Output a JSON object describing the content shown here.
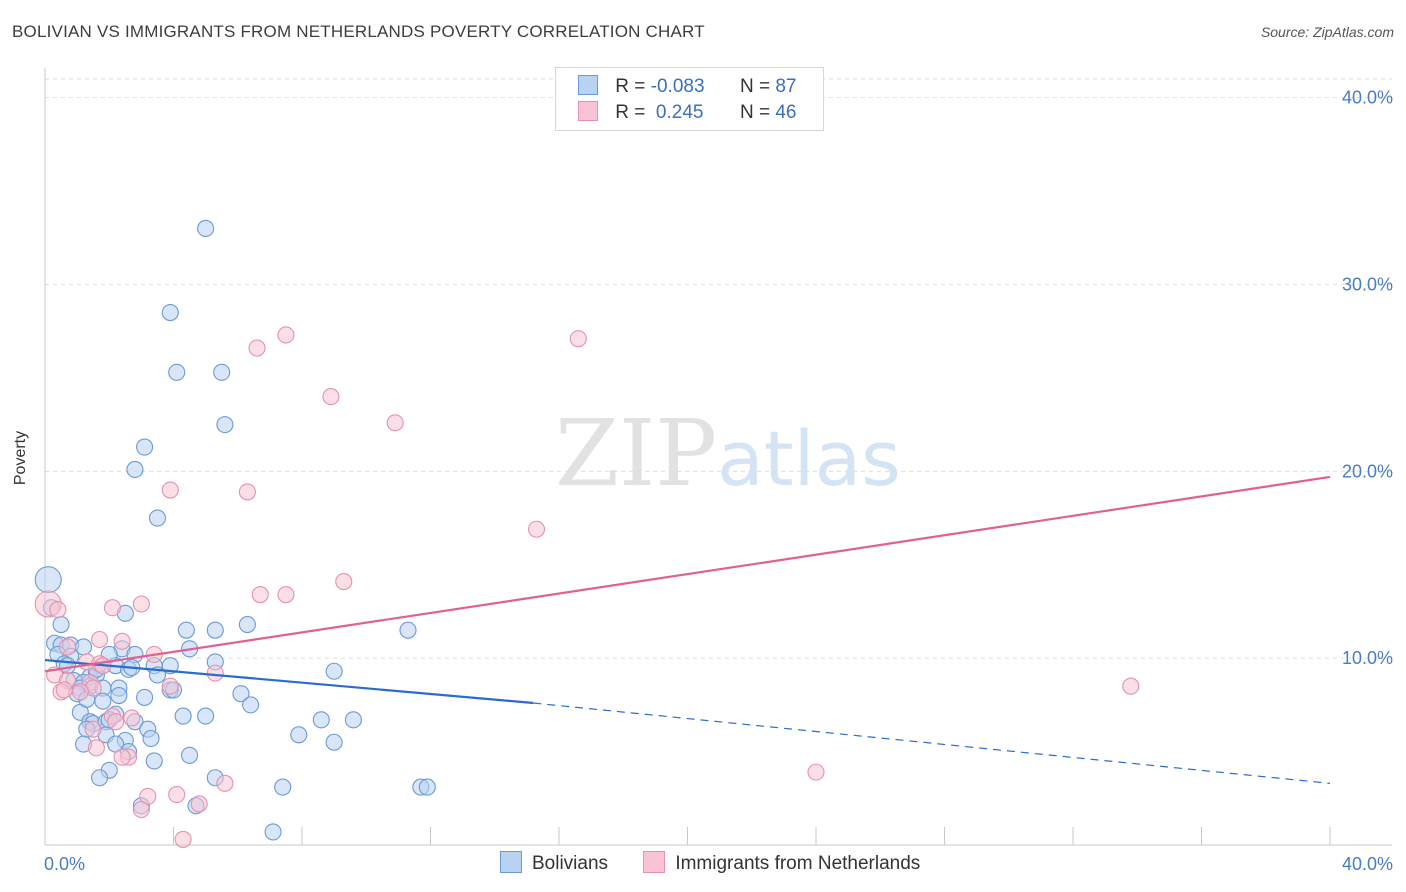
{
  "header": {
    "title": "BOLIVIAN VS IMMIGRANTS FROM NETHERLANDS POVERTY CORRELATION CHART",
    "source": "Source: ZipAtlas.com"
  },
  "watermark": {
    "part1": "ZIP",
    "part2": "atlas"
  },
  "legend": {
    "rows": [
      {
        "r_label": "R = ",
        "r_value": "-0.083",
        "n_label": "N = ",
        "n_value": "87"
      },
      {
        "r_label": "R = ",
        "r_value": " 0.245",
        "n_label": "N = ",
        "n_value": "46"
      }
    ]
  },
  "bottom_legend": {
    "items": [
      "Bolivians",
      "Immigrants from Netherlands"
    ]
  },
  "colors": {
    "blue_fill": "#b8d2f2",
    "blue_stroke": "#6a9ad8",
    "blue_line": "#2a6ccc",
    "pink_fill": "#f8c4d4",
    "pink_stroke": "#e890ac",
    "pink_line": "#e06090",
    "grid": "#dedede",
    "tick_text": "#4a7cc4"
  },
  "chart_data": {
    "type": "scatter",
    "title": "BOLIVIAN VS IMMIGRANTS FROM NETHERLANDS POVERTY CORRELATION CHART",
    "xlabel": "",
    "ylabel": "Poverty",
    "xlim": [
      0,
      40
    ],
    "ylim": [
      0,
      41
    ],
    "x_ticks": [
      "0.0%",
      "40.0%"
    ],
    "y_ticks": [
      {
        "value": 10,
        "label": "10.0%"
      },
      {
        "value": 20,
        "label": "20.0%"
      },
      {
        "value": 30,
        "label": "30.0%"
      },
      {
        "value": 40,
        "label": "40.0%"
      }
    ],
    "grid": true,
    "legend_position": "top-center",
    "series": [
      {
        "name": "Bolivians",
        "color": "#6a9ad8",
        "R": -0.083,
        "N": 87,
        "trend": {
          "x0": 0,
          "y0": 9.9,
          "x1": 15.2,
          "y1": 7.6,
          "dashed_to_x": 40,
          "dashed_to_y": 3.3
        },
        "points": [
          [
            5.0,
            33.0
          ],
          [
            3.9,
            28.5
          ],
          [
            4.1,
            25.3
          ],
          [
            5.5,
            25.3
          ],
          [
            5.6,
            22.5
          ],
          [
            3.1,
            21.3
          ],
          [
            2.8,
            20.1
          ],
          [
            3.5,
            17.5
          ],
          [
            0.1,
            14.2
          ],
          [
            0.2,
            12.7
          ],
          [
            2.5,
            12.4
          ],
          [
            0.5,
            11.8
          ],
          [
            6.3,
            11.8
          ],
          [
            11.3,
            11.5
          ],
          [
            4.4,
            11.5
          ],
          [
            5.3,
            11.5
          ],
          [
            0.3,
            10.8
          ],
          [
            0.5,
            10.7
          ],
          [
            0.8,
            10.7
          ],
          [
            1.2,
            10.6
          ],
          [
            2.4,
            10.5
          ],
          [
            4.5,
            10.5
          ],
          [
            0.4,
            10.2
          ],
          [
            0.8,
            10.1
          ],
          [
            2.8,
            10.2
          ],
          [
            0.6,
            9.7
          ],
          [
            0.7,
            9.6
          ],
          [
            1.8,
            9.6
          ],
          [
            2.2,
            9.6
          ],
          [
            3.4,
            9.6
          ],
          [
            3.9,
            9.6
          ],
          [
            5.3,
            9.8
          ],
          [
            2.6,
            9.4
          ],
          [
            2.7,
            9.5
          ],
          [
            3.5,
            9.1
          ],
          [
            1.4,
            9.0
          ],
          [
            1.6,
            9.1
          ],
          [
            0.9,
            8.8
          ],
          [
            1.2,
            8.7
          ],
          [
            1.4,
            8.5
          ],
          [
            1.1,
            8.4
          ],
          [
            2.3,
            8.4
          ],
          [
            1.8,
            8.4
          ],
          [
            3.9,
            8.3
          ],
          [
            4.0,
            8.3
          ],
          [
            2.3,
            8.0
          ],
          [
            6.1,
            8.1
          ],
          [
            1.0,
            8.1
          ],
          [
            1.8,
            7.7
          ],
          [
            6.4,
            7.5
          ],
          [
            9.0,
            9.3
          ],
          [
            1.1,
            7.1
          ],
          [
            2.2,
            7.0
          ],
          [
            4.3,
            6.9
          ],
          [
            5.0,
            6.9
          ],
          [
            8.6,
            6.7
          ],
          [
            9.6,
            6.7
          ],
          [
            1.4,
            6.6
          ],
          [
            1.5,
            6.5
          ],
          [
            1.9,
            6.6
          ],
          [
            2.8,
            6.6
          ],
          [
            1.3,
            6.2
          ],
          [
            3.2,
            6.2
          ],
          [
            1.9,
            5.9
          ],
          [
            3.3,
            5.7
          ],
          [
            7.9,
            5.9
          ],
          [
            9.0,
            5.5
          ],
          [
            2.5,
            5.6
          ],
          [
            1.2,
            5.4
          ],
          [
            2.2,
            5.4
          ],
          [
            2.6,
            5.0
          ],
          [
            4.5,
            4.8
          ],
          [
            3.4,
            4.5
          ],
          [
            2.0,
            4.0
          ],
          [
            1.7,
            3.6
          ],
          [
            5.3,
            3.6
          ],
          [
            7.4,
            3.1
          ],
          [
            11.7,
            3.1
          ],
          [
            11.9,
            3.1
          ],
          [
            3.0,
            2.1
          ],
          [
            4.7,
            2.1
          ],
          [
            7.1,
            0.7
          ],
          [
            2.0,
            10.2
          ],
          [
            1.6,
            9.4
          ],
          [
            3.1,
            7.9
          ],
          [
            1.3,
            7.8
          ],
          [
            2.0,
            6.7
          ]
        ]
      },
      {
        "name": "Immigrants from Netherlands",
        "color": "#e890ac",
        "R": 0.245,
        "N": 46,
        "trend": {
          "x0": 0,
          "y0": 9.3,
          "x1": 40,
          "y1": 19.7
        },
        "points": [
          [
            7.5,
            27.3
          ],
          [
            16.6,
            27.1
          ],
          [
            6.6,
            26.6
          ],
          [
            8.9,
            24.0
          ],
          [
            10.9,
            22.6
          ],
          [
            3.9,
            19.0
          ],
          [
            6.3,
            18.9
          ],
          [
            15.3,
            16.9
          ],
          [
            9.3,
            14.1
          ],
          [
            6.7,
            13.4
          ],
          [
            7.5,
            13.4
          ],
          [
            0.1,
            12.9
          ],
          [
            3.0,
            12.9
          ],
          [
            2.1,
            12.7
          ],
          [
            0.4,
            12.6
          ],
          [
            1.7,
            11.0
          ],
          [
            2.4,
            10.9
          ],
          [
            0.7,
            10.6
          ],
          [
            3.4,
            10.2
          ],
          [
            1.3,
            9.8
          ],
          [
            1.7,
            9.7
          ],
          [
            1.8,
            9.6
          ],
          [
            5.3,
            9.2
          ],
          [
            0.3,
            9.1
          ],
          [
            0.7,
            8.8
          ],
          [
            1.4,
            8.7
          ],
          [
            1.5,
            8.4
          ],
          [
            0.5,
            8.2
          ],
          [
            0.6,
            8.3
          ],
          [
            1.1,
            8.2
          ],
          [
            3.9,
            8.5
          ],
          [
            33.8,
            8.5
          ],
          [
            2.1,
            6.9
          ],
          [
            2.7,
            6.8
          ],
          [
            2.2,
            6.6
          ],
          [
            1.5,
            6.2
          ],
          [
            1.6,
            5.2
          ],
          [
            2.6,
            4.7
          ],
          [
            2.4,
            4.7
          ],
          [
            24.0,
            3.9
          ],
          [
            5.6,
            3.3
          ],
          [
            4.1,
            2.7
          ],
          [
            3.2,
            2.6
          ],
          [
            4.8,
            2.2
          ],
          [
            3.0,
            1.9
          ],
          [
            4.3,
            0.3
          ]
        ]
      }
    ]
  }
}
